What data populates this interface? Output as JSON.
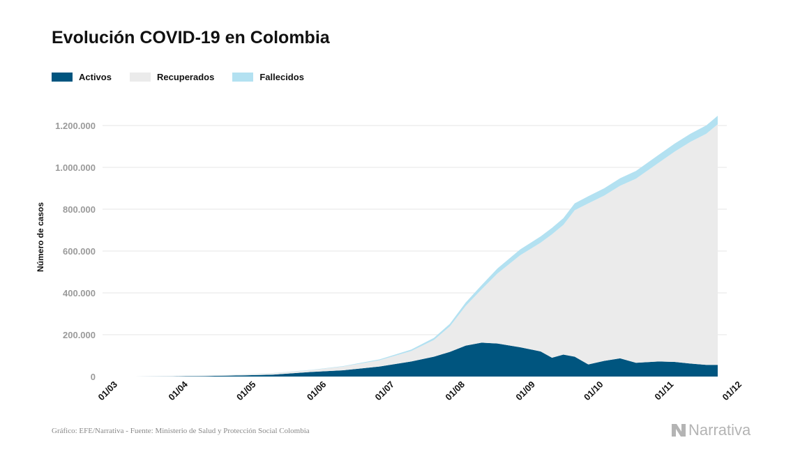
{
  "title": "Evolución COVID-19 en Colombia",
  "footer": "Gráfico: EFE/Narrativa - Fuente: Ministerio de Salud y Protección Social Colombia",
  "brand": "Narrativa",
  "colors": {
    "activos": "#00557f",
    "recuperados": "#ebebeb",
    "fallecidos": "#b3e1f1",
    "grid": "#e6e6e6",
    "axis_text": "#9a9a9a"
  },
  "chart_data": {
    "type": "area",
    "stacked": true,
    "title": "Evolución COVID-19 en Colombia",
    "ylabel": "Número de casos",
    "xlabel": "",
    "legend_position": "top-left",
    "grid": true,
    "ylim": [
      0,
      1300000
    ],
    "y_ticks": [
      0,
      200000,
      400000,
      600000,
      800000,
      1000000,
      1200000
    ],
    "y_tick_labels": [
      "0",
      "200.000",
      "400.000",
      "600.000",
      "800.000",
      "1.000.000",
      "1.200.000"
    ],
    "x_ticks": [
      "2020-03-01",
      "2020-04-01",
      "2020-05-01",
      "2020-06-01",
      "2020-07-01",
      "2020-08-01",
      "2020-09-01",
      "2020-10-01",
      "2020-11-01",
      "2020-12-01"
    ],
    "x_tick_labels": [
      "01/03",
      "01/04",
      "01/05",
      "01/06",
      "01/07",
      "01/08",
      "01/09",
      "01/10",
      "01/11",
      "01/12"
    ],
    "x": [
      "2020-03-06",
      "2020-03-15",
      "2020-04-01",
      "2020-04-15",
      "2020-05-01",
      "2020-05-15",
      "2020-06-01",
      "2020-06-15",
      "2020-07-01",
      "2020-07-15",
      "2020-07-25",
      "2020-08-01",
      "2020-08-08",
      "2020-08-15",
      "2020-08-22",
      "2020-09-01",
      "2020-09-10",
      "2020-09-15",
      "2020-09-20",
      "2020-09-25",
      "2020-10-01",
      "2020-10-08",
      "2020-10-15",
      "2020-10-22",
      "2020-11-01",
      "2020-11-08",
      "2020-11-15",
      "2020-11-22",
      "2020-11-27"
    ],
    "series": [
      {
        "name": "Activos",
        "values": [
          0,
          100,
          1000,
          2500,
          5500,
          9000,
          22000,
          30000,
          48000,
          72000,
          95000,
          118000,
          148000,
          162000,
          158000,
          140000,
          120000,
          90000,
          105000,
          95000,
          58000,
          75000,
          87000,
          66000,
          72000,
          70000,
          62000,
          56000,
          56000
        ]
      },
      {
        "name": "Recuperados",
        "values": [
          0,
          0,
          200,
          1500,
          4000,
          7000,
          9000,
          18000,
          30000,
          50000,
          80000,
          122000,
          190000,
          255000,
          335000,
          440000,
          520000,
          590000,
          620000,
          700000,
          770000,
          790000,
          825000,
          880000,
          950000,
          1005000,
          1060000,
          1105000,
          1150000
        ]
      },
      {
        "name": "Fallecidos",
        "values": [
          0,
          0,
          50,
          150,
          300,
          600,
          1200,
          2000,
          4000,
          7000,
          10000,
          12000,
          16000,
          20000,
          24000,
          28000,
          30000,
          31000,
          32000,
          33000,
          34000,
          35000,
          36000,
          37000,
          38000,
          38500,
          39000,
          40000,
          40500
        ]
      }
    ]
  }
}
